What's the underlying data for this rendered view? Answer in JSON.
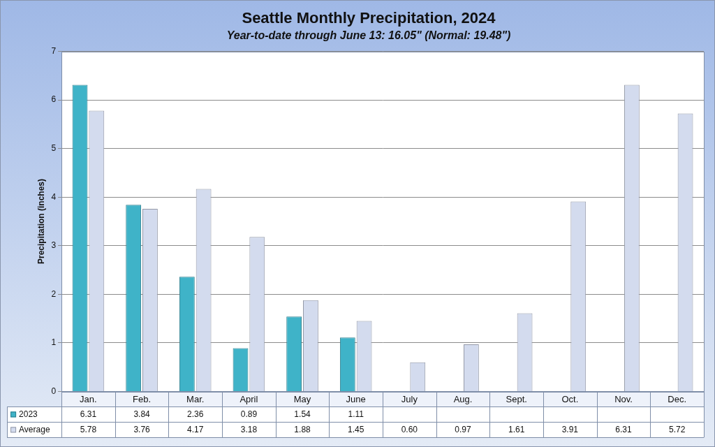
{
  "chart_data": {
    "type": "bar",
    "title": "Seattle Monthly Precipitation, 2024",
    "subtitle": "Year-to-date through June 13: 16.05\" (Normal: 19.48\")",
    "ylabel": "Precipitation (inches)",
    "categories": [
      "Jan.",
      "Feb.",
      "Mar.",
      "April",
      "May",
      "June",
      "July",
      "Aug.",
      "Sept.",
      "Oct.",
      "Nov.",
      "Dec."
    ],
    "series": [
      {
        "name": "2023",
        "color": "#3fb3c8",
        "values": [
          6.31,
          3.84,
          2.36,
          0.89,
          1.54,
          1.11,
          null,
          null,
          null,
          null,
          null,
          null
        ],
        "value_labels": [
          "6.31",
          "3.84",
          "2.36",
          "0.89",
          "1.54",
          "1.11",
          null,
          null,
          null,
          null,
          null,
          null
        ]
      },
      {
        "name": "Average",
        "color": "#d3dbee",
        "values": [
          5.78,
          3.76,
          4.17,
          3.18,
          1.88,
          1.45,
          0.6,
          0.97,
          1.61,
          3.91,
          6.31,
          5.72
        ],
        "value_labels": [
          "5.78",
          "3.76",
          "4.17",
          "3.18",
          "1.88",
          "1.45",
          "0.60",
          "0.97",
          "1.61",
          "3.91",
          "6.31",
          "5.72"
        ]
      }
    ],
    "ylim": [
      0,
      7
    ],
    "yticks": [
      0,
      1,
      2,
      3,
      4,
      5,
      6,
      7
    ],
    "grid": true
  }
}
